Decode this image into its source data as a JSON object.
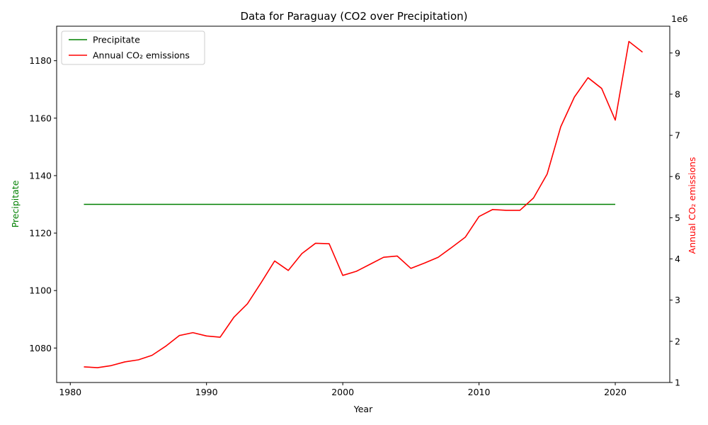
{
  "chart_data": {
    "type": "line",
    "title": "Data for Paraguay (CO2 over Precipitation)",
    "xlabel": "Year",
    "ylabel_left": "Precipitate",
    "ylabel_right": "Annual CO₂ emissions",
    "right_axis_offset_text": "1e6",
    "xlim": [
      1979,
      2024
    ],
    "ylim_left": [
      1068,
      1192
    ],
    "ylim_right": [
      1000000,
      9650000
    ],
    "x_ticks": [
      1980,
      1990,
      2000,
      2010,
      2020
    ],
    "y_left_ticks": [
      1080,
      1100,
      1120,
      1140,
      1160,
      1180
    ],
    "y_right_ticks": [
      1,
      2,
      3,
      4,
      5,
      6,
      7,
      8,
      9
    ],
    "legend_position": "top-left",
    "grid": false,
    "series": [
      {
        "name": "Precipitate",
        "axis": "left",
        "color": "#008000",
        "x": [
          1981,
          1982,
          1983,
          1984,
          1985,
          1986,
          1987,
          1988,
          1989,
          1990,
          1991,
          1992,
          1993,
          1994,
          1995,
          1996,
          1997,
          1998,
          1999,
          2000,
          2001,
          2002,
          2003,
          2004,
          2005,
          2006,
          2007,
          2008,
          2009,
          2010,
          2011,
          2012,
          2013,
          2014,
          2015,
          2016,
          2017,
          2018,
          2019,
          2020
        ],
        "values": [
          1130,
          1130,
          1130,
          1130,
          1130,
          1130,
          1130,
          1130,
          1130,
          1130,
          1130,
          1130,
          1130,
          1130,
          1130,
          1130,
          1130,
          1130,
          1130,
          1130,
          1130,
          1130,
          1130,
          1130,
          1130,
          1130,
          1130,
          1130,
          1130,
          1130,
          1130,
          1130,
          1130,
          1130,
          1130,
          1130,
          1130,
          1130,
          1130,
          1130
        ]
      },
      {
        "name": "Annual CO₂ emissions",
        "axis": "right",
        "color": "#ff0000",
        "x": [
          1981,
          1982,
          1983,
          1984,
          1985,
          1986,
          1987,
          1988,
          1989,
          1990,
          1991,
          1992,
          1993,
          1994,
          1995,
          1996,
          1997,
          1998,
          1999,
          2000,
          2001,
          2002,
          2003,
          2004,
          2005,
          2006,
          2007,
          2008,
          2009,
          2010,
          2011,
          2012,
          2013,
          2014,
          2015,
          2016,
          2017,
          2018,
          2019,
          2020,
          2021,
          2022
        ],
        "values": [
          1380000,
          1360000,
          1410000,
          1500000,
          1550000,
          1660000,
          1880000,
          2140000,
          2210000,
          2130000,
          2100000,
          2580000,
          2910000,
          3420000,
          3950000,
          3720000,
          4130000,
          4380000,
          4370000,
          3600000,
          3700000,
          3870000,
          4040000,
          4070000,
          3770000,
          3900000,
          4040000,
          4280000,
          4530000,
          5030000,
          5200000,
          5180000,
          5180000,
          5480000,
          6060000,
          7210000,
          7930000,
          8400000,
          8140000,
          7370000,
          9280000,
          9020000
        ]
      }
    ]
  }
}
